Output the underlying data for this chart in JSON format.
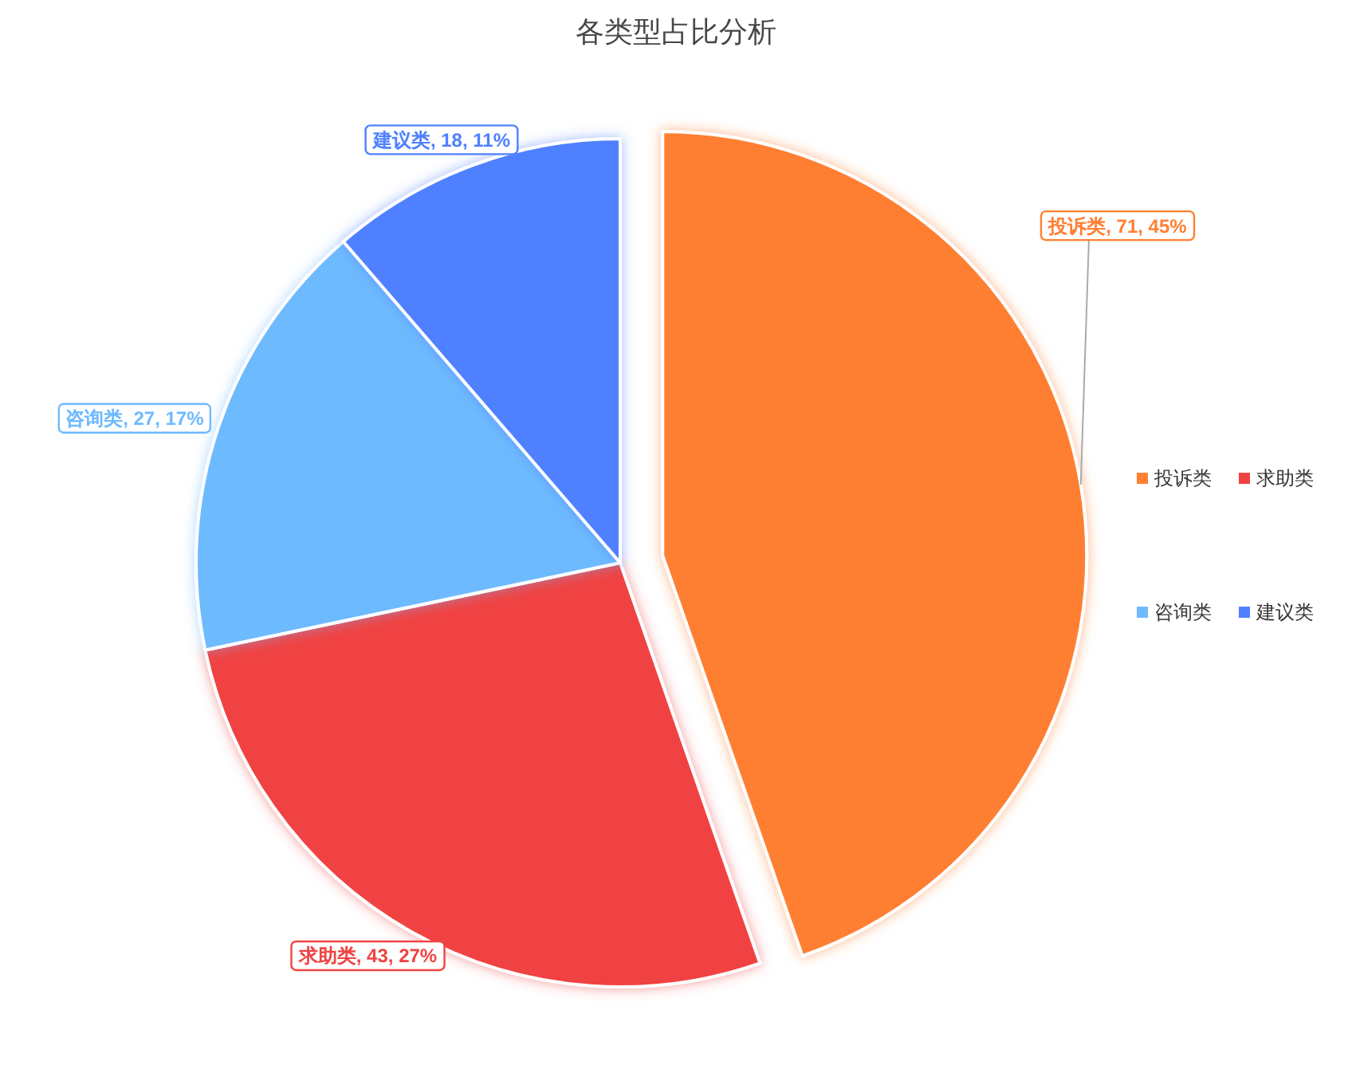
{
  "chart_data": {
    "type": "pie",
    "title": "各类型占比分析",
    "categories": [
      "投诉类",
      "求助类",
      "咨询类",
      "建议类"
    ],
    "values": [
      71,
      43,
      27,
      18
    ],
    "colors": [
      "#ff7f33",
      "#f04343",
      "#6ebaff",
      "#4f80ff"
    ],
    "value_labels": [
      "投诉类, 71, 45%",
      "求助类, 43, 27%",
      "咨询类, 27, 17%",
      "建议类, 18, 11%"
    ],
    "legend": "right"
  }
}
